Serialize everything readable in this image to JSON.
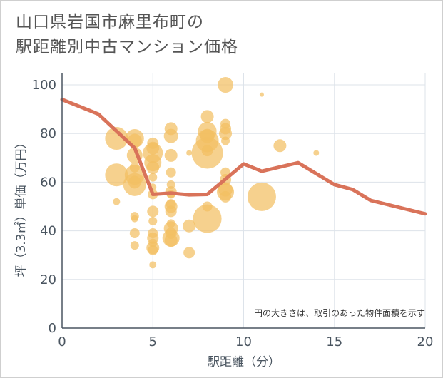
{
  "title_line1": "山口県岩国市麻里布町の",
  "title_line2": "駅距離別中古マンション価格",
  "chart_data": {
    "type": "scatter",
    "xlabel": "駅距離（分）",
    "ylabel": "坪（3.3㎡）単価（万円）",
    "xlim": [
      0,
      20
    ],
    "ylim": [
      0,
      105
    ],
    "x_ticks": [
      "0",
      "5",
      "10",
      "15",
      "20"
    ],
    "y_ticks": [
      "0",
      "20",
      "40",
      "60",
      "80",
      "100"
    ],
    "grid": true,
    "annotation": "円の大きさは、取引のあった物件面積を示す",
    "colors": {
      "bubble": "#f3bf63",
      "line": "#d9735a",
      "grid": "#dde3ea",
      "axis": "#4a5560"
    },
    "series": [
      {
        "kind": "bubble",
        "points": [
          {
            "x": 3,
            "y": 78,
            "s": 16
          },
          {
            "x": 3,
            "y": 63,
            "s": 16
          },
          {
            "x": 3,
            "y": 52,
            "s": 5
          },
          {
            "x": 4,
            "y": 78,
            "s": 13
          },
          {
            "x": 4,
            "y": 77,
            "s": 10
          },
          {
            "x": 4,
            "y": 71,
            "s": 11
          },
          {
            "x": 4,
            "y": 66,
            "s": 7
          },
          {
            "x": 4,
            "y": 63,
            "s": 14
          },
          {
            "x": 4,
            "y": 60,
            "s": 9
          },
          {
            "x": 4,
            "y": 59,
            "s": 16
          },
          {
            "x": 4,
            "y": 46,
            "s": 6
          },
          {
            "x": 4,
            "y": 45,
            "s": 5
          },
          {
            "x": 4,
            "y": 39,
            "s": 7
          },
          {
            "x": 4,
            "y": 34,
            "s": 6
          },
          {
            "x": 5,
            "y": 76,
            "s": 8
          },
          {
            "x": 5,
            "y": 74,
            "s": 9
          },
          {
            "x": 5,
            "y": 72,
            "s": 14
          },
          {
            "x": 5,
            "y": 68,
            "s": 12
          },
          {
            "x": 5,
            "y": 66,
            "s": 9
          },
          {
            "x": 5,
            "y": 62,
            "s": 6
          },
          {
            "x": 5,
            "y": 58,
            "s": 5
          },
          {
            "x": 5,
            "y": 55,
            "s": 7
          },
          {
            "x": 5,
            "y": 48,
            "s": 8
          },
          {
            "x": 5,
            "y": 44,
            "s": 6
          },
          {
            "x": 5,
            "y": 39,
            "s": 7
          },
          {
            "x": 5,
            "y": 37,
            "s": 8
          },
          {
            "x": 5,
            "y": 35,
            "s": 6
          },
          {
            "x": 5,
            "y": 33,
            "s": 9
          },
          {
            "x": 5,
            "y": 32,
            "s": 7
          },
          {
            "x": 5,
            "y": 26,
            "s": 5
          },
          {
            "x": 6,
            "y": 82,
            "s": 9
          },
          {
            "x": 6,
            "y": 79,
            "s": 10
          },
          {
            "x": 6,
            "y": 71,
            "s": 9
          },
          {
            "x": 6,
            "y": 64,
            "s": 7
          },
          {
            "x": 6,
            "y": 59,
            "s": 6
          },
          {
            "x": 6,
            "y": 56,
            "s": 8
          },
          {
            "x": 6,
            "y": 55,
            "s": 6
          },
          {
            "x": 6,
            "y": 51,
            "s": 7
          },
          {
            "x": 6,
            "y": 50,
            "s": 9
          },
          {
            "x": 6,
            "y": 48,
            "s": 8
          },
          {
            "x": 6,
            "y": 43,
            "s": 6
          },
          {
            "x": 6,
            "y": 41,
            "s": 10
          },
          {
            "x": 6,
            "y": 39,
            "s": 8
          },
          {
            "x": 6,
            "y": 37,
            "s": 12
          },
          {
            "x": 6,
            "y": 36,
            "s": 9
          },
          {
            "x": 7,
            "y": 72,
            "s": 4
          },
          {
            "x": 7,
            "y": 42,
            "s": 9
          },
          {
            "x": 7,
            "y": 31,
            "s": 8
          },
          {
            "x": 8,
            "y": 87,
            "s": 9
          },
          {
            "x": 8,
            "y": 81,
            "s": 13
          },
          {
            "x": 8,
            "y": 79,
            "s": 10
          },
          {
            "x": 8,
            "y": 77,
            "s": 16
          },
          {
            "x": 8,
            "y": 73,
            "s": 8
          },
          {
            "x": 8,
            "y": 72,
            "s": 22
          },
          {
            "x": 8,
            "y": 50,
            "s": 7
          },
          {
            "x": 8,
            "y": 45,
            "s": 20
          },
          {
            "x": 9,
            "y": 100,
            "s": 11
          },
          {
            "x": 9,
            "y": 84,
            "s": 7
          },
          {
            "x": 9,
            "y": 82,
            "s": 8
          },
          {
            "x": 9,
            "y": 80,
            "s": 9
          },
          {
            "x": 9,
            "y": 77,
            "s": 6
          },
          {
            "x": 9,
            "y": 64,
            "s": 7
          },
          {
            "x": 9,
            "y": 61,
            "s": 8
          },
          {
            "x": 9,
            "y": 57,
            "s": 10
          },
          {
            "x": 9,
            "y": 56,
            "s": 12
          },
          {
            "x": 9,
            "y": 54,
            "s": 8
          },
          {
            "x": 11,
            "y": 96,
            "s": 3
          },
          {
            "x": 11,
            "y": 54,
            "s": 20
          },
          {
            "x": 12,
            "y": 75,
            "s": 9
          },
          {
            "x": 14,
            "y": 72,
            "s": 4
          }
        ]
      },
      {
        "kind": "line",
        "x": [
          0,
          2,
          3,
          4,
          5,
          6,
          7,
          8,
          10,
          11,
          13,
          15,
          16,
          17,
          20
        ],
        "y": [
          94,
          88,
          81,
          74,
          55,
          55.5,
          54.8,
          55,
          67.5,
          64.5,
          68,
          59,
          57,
          52.5,
          47
        ]
      }
    ]
  }
}
